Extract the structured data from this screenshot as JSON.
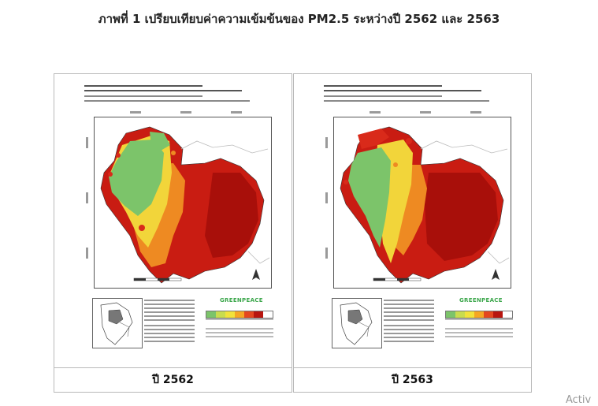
{
  "page": {
    "title": "ภาพที่ 1 เปรียบเทียบค่าความเข้มข้นของ PM2.5 ระหว่างปี 2562 และ 2563"
  },
  "maps": [
    {
      "year_label": "ปี 2562",
      "logo_text": "GREENPEACE"
    },
    {
      "year_label": "ปี 2563",
      "logo_text": "GREENPEACE"
    }
  ],
  "legend": {
    "colors": [
      "#7cc46a",
      "#c9dc4e",
      "#f2e23a",
      "#f5a623",
      "#e4471f",
      "#b8150f",
      "#ffffff"
    ]
  },
  "map_colors": {
    "green": "#7cc46a",
    "yellow": "#f2d53a",
    "orange": "#ee8a22",
    "red": "#d92a1a",
    "darkred": "#b3120d",
    "border": "#333333"
  },
  "watermark": {
    "text": "Activ"
  }
}
